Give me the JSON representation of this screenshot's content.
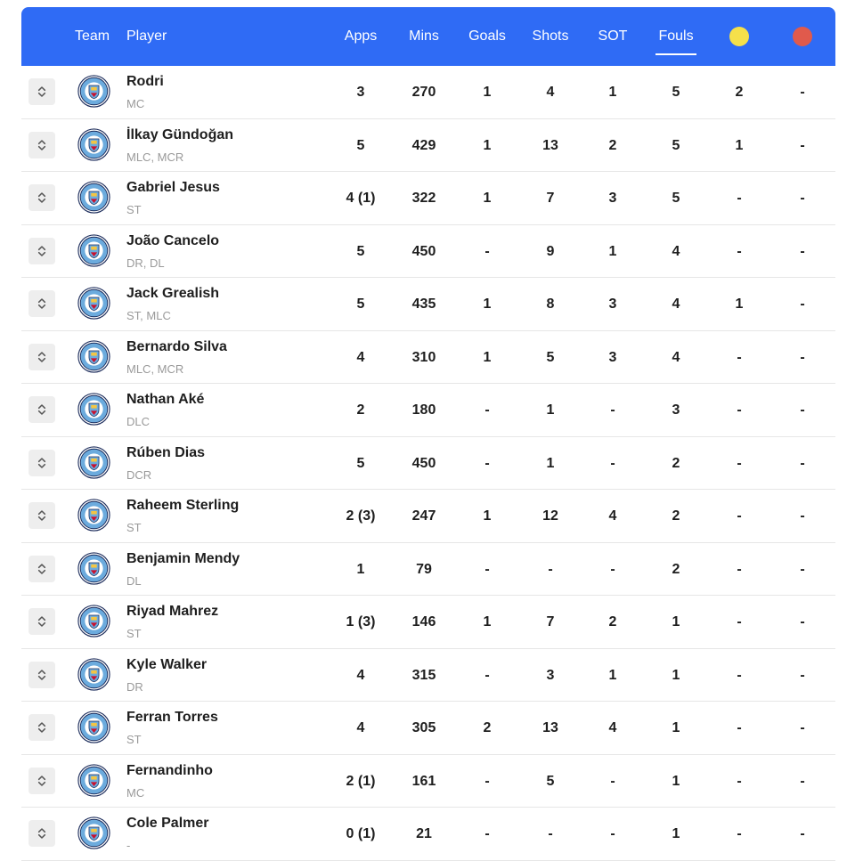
{
  "header": {
    "team": "Team",
    "player": "Player",
    "apps": "Apps",
    "mins": "Mins",
    "goals": "Goals",
    "shots": "Shots",
    "sot": "SOT",
    "fouls": "Fouls",
    "active_sort": "Fouls",
    "yellow_color": "#f5e04a",
    "red_color": "#e05a4c"
  },
  "colors": {
    "header_bg": "#2f6bf5",
    "row_divider": "#e6e6e6"
  },
  "team_icon": "manchester-city-crest-icon",
  "sort_icon": "up-down-chevron-icon",
  "players": [
    {
      "name": "Rodri",
      "pos": "MC",
      "apps": "3",
      "mins": "270",
      "goals": "1",
      "shots": "4",
      "sot": "1",
      "fouls": "5",
      "yellow": "2",
      "red": "-"
    },
    {
      "name": "İlkay Gündoğan",
      "pos": "MLC, MCR",
      "apps": "5",
      "mins": "429",
      "goals": "1",
      "shots": "13",
      "sot": "2",
      "fouls": "5",
      "yellow": "1",
      "red": "-"
    },
    {
      "name": "Gabriel Jesus",
      "pos": "ST",
      "apps": "4 (1)",
      "mins": "322",
      "goals": "1",
      "shots": "7",
      "sot": "3",
      "fouls": "5",
      "yellow": "-",
      "red": "-"
    },
    {
      "name": "João Cancelo",
      "pos": "DR, DL",
      "apps": "5",
      "mins": "450",
      "goals": "-",
      "shots": "9",
      "sot": "1",
      "fouls": "4",
      "yellow": "-",
      "red": "-"
    },
    {
      "name": "Jack Grealish",
      "pos": "ST, MLC",
      "apps": "5",
      "mins": "435",
      "goals": "1",
      "shots": "8",
      "sot": "3",
      "fouls": "4",
      "yellow": "1",
      "red": "-"
    },
    {
      "name": "Bernardo Silva",
      "pos": "MLC, MCR",
      "apps": "4",
      "mins": "310",
      "goals": "1",
      "shots": "5",
      "sot": "3",
      "fouls": "4",
      "yellow": "-",
      "red": "-"
    },
    {
      "name": "Nathan Aké",
      "pos": "DLC",
      "apps": "2",
      "mins": "180",
      "goals": "-",
      "shots": "1",
      "sot": "-",
      "fouls": "3",
      "yellow": "-",
      "red": "-"
    },
    {
      "name": "Rúben Dias",
      "pos": "DCR",
      "apps": "5",
      "mins": "450",
      "goals": "-",
      "shots": "1",
      "sot": "-",
      "fouls": "2",
      "yellow": "-",
      "red": "-"
    },
    {
      "name": "Raheem Sterling",
      "pos": "ST",
      "apps": "2 (3)",
      "mins": "247",
      "goals": "1",
      "shots": "12",
      "sot": "4",
      "fouls": "2",
      "yellow": "-",
      "red": "-"
    },
    {
      "name": "Benjamin Mendy",
      "pos": "DL",
      "apps": "1",
      "mins": "79",
      "goals": "-",
      "shots": "-",
      "sot": "-",
      "fouls": "2",
      "yellow": "-",
      "red": "-"
    },
    {
      "name": "Riyad Mahrez",
      "pos": "ST",
      "apps": "1 (3)",
      "mins": "146",
      "goals": "1",
      "shots": "7",
      "sot": "2",
      "fouls": "1",
      "yellow": "-",
      "red": "-"
    },
    {
      "name": "Kyle Walker",
      "pos": "DR",
      "apps": "4",
      "mins": "315",
      "goals": "-",
      "shots": "3",
      "sot": "1",
      "fouls": "1",
      "yellow": "-",
      "red": "-"
    },
    {
      "name": "Ferran Torres",
      "pos": "ST",
      "apps": "4",
      "mins": "305",
      "goals": "2",
      "shots": "13",
      "sot": "4",
      "fouls": "1",
      "yellow": "-",
      "red": "-"
    },
    {
      "name": "Fernandinho",
      "pos": "MC",
      "apps": "2 (1)",
      "mins": "161",
      "goals": "-",
      "shots": "5",
      "sot": "-",
      "fouls": "1",
      "yellow": "-",
      "red": "-"
    },
    {
      "name": "Cole Palmer",
      "pos": "-",
      "apps": "0 (1)",
      "mins": "21",
      "goals": "-",
      "shots": "-",
      "sot": "-",
      "fouls": "1",
      "yellow": "-",
      "red": "-"
    }
  ]
}
